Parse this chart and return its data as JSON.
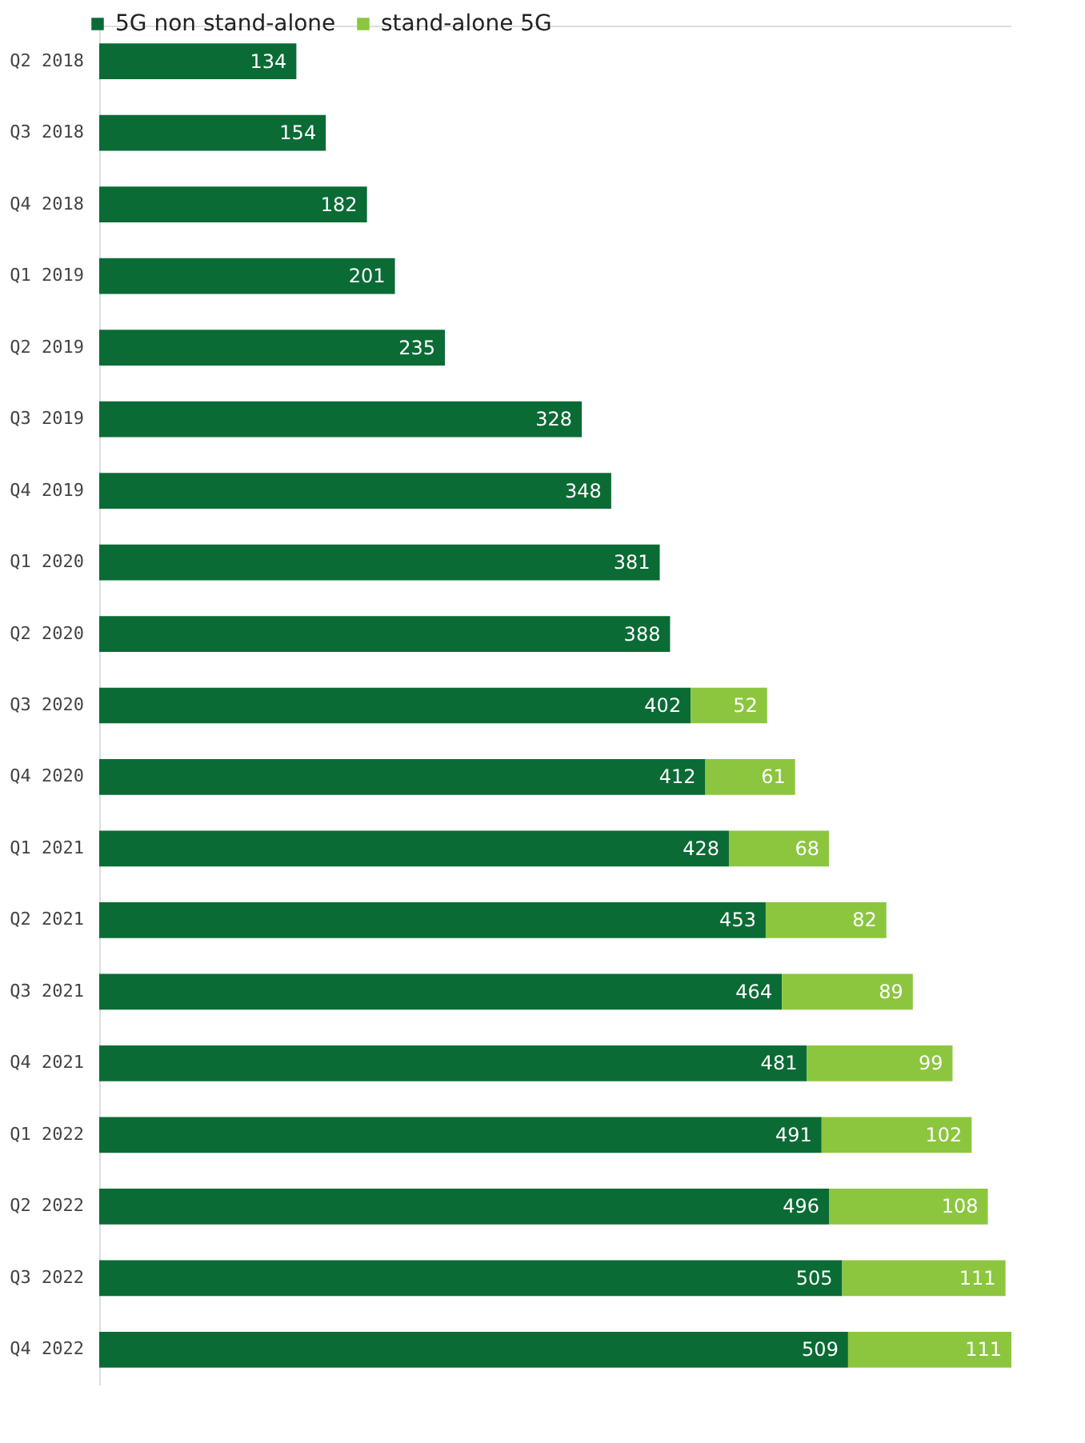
{
  "chart_data": {
    "type": "bar",
    "orientation": "horizontal",
    "stacked": true,
    "data_labels": true,
    "legend": "top left",
    "grid": false,
    "categories": [
      "Q2 2018",
      "Q3 2018",
      "Q4 2018",
      "Q1 2019",
      "Q2 2019",
      "Q3 2019",
      "Q4 2019",
      "Q1 2020",
      "Q2 2020",
      "Q3 2020",
      "Q4 2020",
      "Q1 2021",
      "Q2 2021",
      "Q3 2021",
      "Q4 2021",
      "Q1 2022",
      "Q2 2022",
      "Q3 2022",
      "Q4 2022"
    ],
    "series": [
      {
        "name": "5G non stand-alone",
        "color": "#0b6b35",
        "values": [
          134,
          154,
          182,
          201,
          235,
          328,
          348,
          381,
          388,
          402,
          412,
          428,
          453,
          464,
          481,
          491,
          496,
          505,
          509
        ]
      },
      {
        "name": "stand-alone 5G",
        "color": "#8cc63f",
        "values": [
          null,
          null,
          null,
          null,
          null,
          null,
          null,
          null,
          null,
          52,
          61,
          68,
          82,
          89,
          99,
          102,
          108,
          111,
          111
        ]
      }
    ]
  }
}
